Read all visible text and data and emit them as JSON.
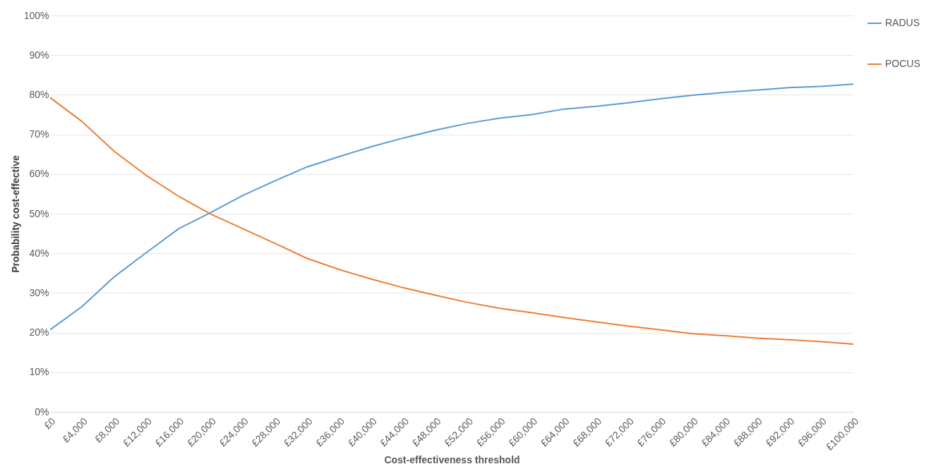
{
  "chart_data": {
    "type": "line",
    "xlabel": "Cost-effectiveness threshold",
    "ylabel": "Probability cost-effective",
    "x": [
      0,
      4000,
      8000,
      12000,
      16000,
      20000,
      24000,
      28000,
      32000,
      36000,
      40000,
      44000,
      48000,
      52000,
      56000,
      60000,
      64000,
      68000,
      72000,
      76000,
      80000,
      84000,
      88000,
      92000,
      96000,
      100000
    ],
    "series": [
      {
        "name": "RADUS",
        "color": "#5b9bd5",
        "values": [
          20.7,
          26.6,
          34.1,
          40.2,
          46.2,
          50.3,
          54.6,
          58.3,
          61.8,
          64.4,
          66.9,
          69.1,
          71.1,
          72.8,
          74.1,
          75.0,
          76.4,
          77.1,
          78.0,
          79.0,
          79.9,
          80.6,
          81.2,
          81.8,
          82.1,
          82.7
        ]
      },
      {
        "name": "POCUS",
        "color": "#ed7d31",
        "values": [
          79.3,
          73.2,
          65.7,
          59.6,
          54.4,
          49.9,
          46.2,
          42.5,
          38.7,
          35.9,
          33.5,
          31.3,
          29.4,
          27.6,
          26.1,
          25.0,
          23.8,
          22.7,
          21.6,
          20.7,
          19.7,
          19.2,
          18.6,
          18.2,
          17.7,
          17.1
        ]
      }
    ],
    "xlim": [
      0,
      100000
    ],
    "xticks": [
      {
        "value": 0,
        "label": "£0"
      },
      {
        "value": 4000,
        "label": "£4,000"
      },
      {
        "value": 8000,
        "label": "£8,000"
      },
      {
        "value": 12000,
        "label": "£12,000"
      },
      {
        "value": 16000,
        "label": "£16,000"
      },
      {
        "value": 20000,
        "label": "£20,000"
      },
      {
        "value": 24000,
        "label": "£24,000"
      },
      {
        "value": 28000,
        "label": "£28,000"
      },
      {
        "value": 32000,
        "label": "£32,000"
      },
      {
        "value": 36000,
        "label": "£36,000"
      },
      {
        "value": 40000,
        "label": "£40,000"
      },
      {
        "value": 44000,
        "label": "£44,000"
      },
      {
        "value": 48000,
        "label": "£48,000"
      },
      {
        "value": 52000,
        "label": "£52,000"
      },
      {
        "value": 56000,
        "label": "£56,000"
      },
      {
        "value": 60000,
        "label": "£60,000"
      },
      {
        "value": 64000,
        "label": "£64,000"
      },
      {
        "value": 68000,
        "label": "£68,000"
      },
      {
        "value": 72000,
        "label": "£72,000"
      },
      {
        "value": 76000,
        "label": "£76,000"
      },
      {
        "value": 80000,
        "label": "£80,000"
      },
      {
        "value": 84000,
        "label": "£84,000"
      },
      {
        "value": 88000,
        "label": "£88,000"
      },
      {
        "value": 92000,
        "label": "£92,000"
      },
      {
        "value": 96000,
        "label": "£96,000"
      },
      {
        "value": 100000,
        "label": "£100,000"
      }
    ],
    "ylim": [
      0,
      100
    ],
    "yticks": [
      {
        "value": 0,
        "label": "0%"
      },
      {
        "value": 10,
        "label": "10%"
      },
      {
        "value": 20,
        "label": "20%"
      },
      {
        "value": 30,
        "label": "30%"
      },
      {
        "value": 40,
        "label": "40%"
      },
      {
        "value": 50,
        "label": "50%"
      },
      {
        "value": 60,
        "label": "60%"
      },
      {
        "value": 70,
        "label": "70%"
      },
      {
        "value": 80,
        "label": "80%"
      },
      {
        "value": 90,
        "label": "90%"
      },
      {
        "value": 100,
        "label": "100%"
      }
    ],
    "grid": "y",
    "legend": "right",
    "marker": "none",
    "line_style": "solid"
  }
}
